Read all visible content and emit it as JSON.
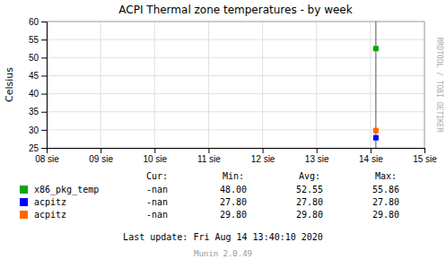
{
  "chart_data": {
    "type": "scatter",
    "title": "ACPI Thermal zone temperatures - by week",
    "y_label": "Celsius",
    "xlim": [
      0,
      7
    ],
    "xticks": [
      {
        "value": 0,
        "label": "08 sie"
      },
      {
        "value": 1,
        "label": "09 sie"
      },
      {
        "value": 2,
        "label": "10 sie"
      },
      {
        "value": 3,
        "label": "11 sie"
      },
      {
        "value": 4,
        "label": "12 sie"
      },
      {
        "value": 5,
        "label": "13 sie"
      },
      {
        "value": 6,
        "label": "14 sie"
      },
      {
        "value": 7,
        "label": "15 sie"
      }
    ],
    "ylim": [
      25,
      60
    ],
    "yticks": [
      25,
      30,
      35,
      40,
      45,
      50,
      55,
      60
    ],
    "grid": true,
    "marker": "square",
    "series": [
      {
        "name": "x86_pkg_temp",
        "color": "#00aa00",
        "x": [
          6.1
        ],
        "values": [
          52.5
        ],
        "stats": [
          "-nan",
          "48.00",
          "52.55",
          "55.86"
        ]
      },
      {
        "name": "acpitz",
        "color": "#0000ff",
        "x": [
          6.1
        ],
        "values": [
          27.8
        ],
        "stats": [
          "-nan",
          "27.80",
          "27.80",
          "27.80"
        ]
      },
      {
        "name": "acpitz",
        "color": "#ff6600",
        "x": [
          6.1
        ],
        "values": [
          29.8
        ],
        "stats": [
          "-nan",
          "29.80",
          "29.80",
          "29.80"
        ]
      }
    ],
    "stats_headers": [
      "Cur:",
      "Min:",
      "Avg:",
      "Max:"
    ],
    "vertical_line": {
      "x": 6.1,
      "color": "#555555"
    },
    "annotations": [
      "Last update: Fri Aug 14 13:40:10 2020",
      "Munin 2.0.49",
      "RRDTOOL / TOBI OETIKER"
    ]
  }
}
